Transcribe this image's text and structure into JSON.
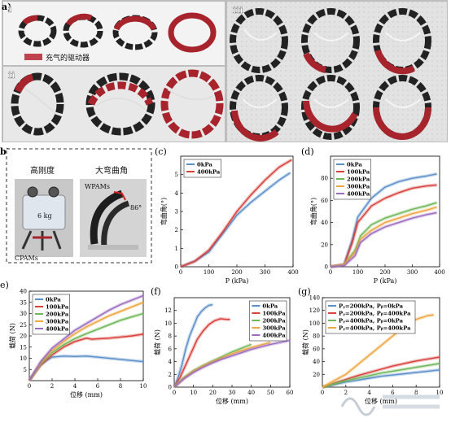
{
  "figure": {
    "panel_a": {
      "label": "a)",
      "sub_i": "i",
      "sub_ii": "ii",
      "sub_iii": "iii",
      "legend_text": "充气的驱动器",
      "legend_color": "#c0424f"
    },
    "panel_b": {
      "label": "b)",
      "left_title": "高刚度",
      "right_title": "大弯曲角",
      "weight_label": "6 kg",
      "cpam_label": "CPAMs",
      "wpam_label": "WPAMs",
      "angle_label": "86°"
    },
    "panel_labels": {
      "c": "(c)",
      "d": "(d)",
      "e": "e)",
      "f": "(f)",
      "g": "(g)"
    }
  },
  "chart_data": [
    {
      "id": "c",
      "type": "line",
      "xlabel": "P (kPa)",
      "ylabel": "弯曲角(°)",
      "xlim": [
        0,
        400
      ],
      "ylim": [
        0,
        6
      ],
      "xticks": [
        "0",
        "100",
        "200",
        "300",
        "400"
      ],
      "yticks": [
        "0",
        "1",
        "2",
        "3",
        "4",
        "5"
      ],
      "legend_position": "top-left",
      "series": [
        {
          "name": "0kPa",
          "color": "#5b8fc9",
          "x": [
            0,
            50,
            100,
            150,
            200,
            250,
            300,
            350,
            390
          ],
          "y": [
            0,
            0.3,
            0.8,
            1.8,
            2.8,
            3.5,
            4.1,
            4.7,
            5.1
          ]
        },
        {
          "name": "400kPa",
          "color": "#d8403a",
          "x": [
            0,
            50,
            100,
            150,
            200,
            250,
            300,
            350,
            395
          ],
          "y": [
            0,
            0.3,
            0.9,
            1.9,
            3.0,
            3.9,
            4.7,
            5.4,
            5.8
          ]
        }
      ]
    },
    {
      "id": "d",
      "type": "line",
      "xlabel": "P (kPa)",
      "ylabel": "弯曲角(°)",
      "xlim": [
        0,
        400
      ],
      "ylim": [
        0,
        100
      ],
      "xticks": [
        "0",
        "100",
        "200",
        "300",
        "400"
      ],
      "yticks": [
        "0",
        "20",
        "40",
        "60",
        "80"
      ],
      "legend_position": "top-left",
      "series": [
        {
          "name": "0kPa",
          "color": "#5b8fc9",
          "x": [
            0,
            50,
            80,
            100,
            150,
            200,
            250,
            300,
            350,
            390
          ],
          "y": [
            0,
            2,
            25,
            45,
            62,
            72,
            77,
            80,
            82,
            84
          ]
        },
        {
          "name": "100kPa",
          "color": "#d8403a",
          "x": [
            0,
            50,
            80,
            100,
            150,
            200,
            250,
            300,
            350,
            390
          ],
          "y": [
            0,
            2,
            22,
            40,
            55,
            62,
            67,
            71,
            73,
            74
          ]
        },
        {
          "name": "200kPa",
          "color": "#6fb85a",
          "x": [
            0,
            50,
            90,
            110,
            150,
            200,
            250,
            300,
            350,
            390
          ],
          "y": [
            0,
            2,
            15,
            28,
            38,
            44,
            48,
            52,
            55,
            58
          ]
        },
        {
          "name": "300kPa",
          "color": "#f0a640",
          "x": [
            0,
            50,
            90,
            110,
            150,
            200,
            250,
            300,
            350,
            390
          ],
          "y": [
            0,
            2,
            13,
            25,
            33,
            40,
            44,
            48,
            51,
            54
          ]
        },
        {
          "name": "400kPa",
          "color": "#9a6cc0",
          "x": [
            0,
            50,
            90,
            110,
            150,
            200,
            250,
            300,
            350,
            390
          ],
          "y": [
            0,
            1,
            10,
            22,
            30,
            36,
            40,
            44,
            47,
            49
          ]
        }
      ]
    },
    {
      "id": "e",
      "type": "line",
      "xlabel": "位移 (mm)",
      "ylabel": "载荷 (N)",
      "xlim": [
        0,
        10
      ],
      "ylim": [
        0,
        40
      ],
      "xticks": [
        "0",
        "2",
        "4",
        "6",
        "8",
        "10"
      ],
      "yticks": [
        "5",
        "10",
        "15",
        "20",
        "25",
        "30",
        "35",
        "40"
      ],
      "legend_position": "top-left",
      "series": [
        {
          "name": "0kPa",
          "color": "#5b8fc9",
          "x": [
            0,
            0.5,
            1,
            1.5,
            2,
            3,
            4,
            5,
            6,
            8,
            10
          ],
          "y": [
            0,
            4,
            7,
            9,
            10.5,
            11,
            10.8,
            11,
            10.5,
            9.5,
            8.5
          ]
        },
        {
          "name": "100kPa",
          "color": "#d8403a",
          "x": [
            0,
            1,
            2,
            3,
            4,
            5,
            5.5,
            6,
            7,
            8,
            9,
            10
          ],
          "y": [
            0,
            7,
            11.5,
            15,
            17.5,
            19,
            18.5,
            18.7,
            19,
            19.5,
            20,
            20.8
          ]
        },
        {
          "name": "200kPa",
          "color": "#6fb85a",
          "x": [
            0,
            1,
            2,
            3,
            4,
            5,
            6,
            7,
            8,
            9,
            10
          ],
          "y": [
            0,
            7.5,
            12.5,
            16,
            18.8,
            21,
            23,
            25,
            27,
            28.5,
            30
          ]
        },
        {
          "name": "300kPa",
          "color": "#f0a640",
          "x": [
            0,
            1,
            2,
            3,
            4,
            5,
            6,
            7,
            8,
            9,
            10
          ],
          "y": [
            0,
            8,
            13.5,
            17.5,
            21,
            24,
            26.5,
            29,
            31,
            33,
            35
          ]
        },
        {
          "name": "400kPa",
          "color": "#9a6cc0",
          "x": [
            0,
            1,
            2,
            3,
            4,
            5,
            6,
            7,
            8,
            9,
            10
          ],
          "y": [
            0,
            8.5,
            14.5,
            18.5,
            22.5,
            25.5,
            28.5,
            31.5,
            34,
            36,
            38
          ]
        }
      ]
    },
    {
      "id": "f",
      "type": "line",
      "xlabel": "位移 (mm)",
      "ylabel": "载荷 (N)",
      "xlim": [
        0,
        60
      ],
      "ylim": [
        0,
        14
      ],
      "xticks": [
        "0",
        "10",
        "20",
        "30",
        "40",
        "50",
        "60"
      ],
      "yticks": [
        "0",
        "2",
        "4",
        "6",
        "8",
        "10",
        "12"
      ],
      "legend_position": "top-right",
      "series": [
        {
          "name": "0kPa",
          "color": "#5b8fc9",
          "x": [
            0,
            2,
            4,
            6,
            8,
            10,
            12,
            14,
            16,
            18,
            20
          ],
          "y": [
            0,
            1.5,
            3.5,
            6,
            8,
            9.5,
            11,
            11.8,
            12.4,
            12.8,
            12.9
          ]
        },
        {
          "name": "100kPa",
          "color": "#d8403a",
          "x": [
            0,
            3,
            6,
            9,
            12,
            15,
            18,
            21,
            24,
            27,
            29
          ],
          "y": [
            0,
            1.5,
            3.5,
            5.5,
            7.5,
            8.8,
            9.8,
            10.4,
            10.7,
            10.6,
            10.6
          ]
        },
        {
          "name": "200kPa",
          "color": "#6fb85a",
          "x": [
            0,
            5,
            10,
            15,
            20,
            25,
            30,
            35,
            40
          ],
          "y": [
            0,
            1.5,
            2.6,
            3.4,
            4.1,
            4.8,
            5.5,
            6.1,
            6.7
          ]
        },
        {
          "name": "300kPa",
          "color": "#f0a640",
          "x": [
            0,
            5,
            10,
            15,
            20,
            25,
            30,
            35,
            40,
            45,
            50
          ],
          "y": [
            0,
            1.4,
            2.5,
            3.3,
            4.0,
            4.6,
            5.2,
            5.7,
            6.2,
            6.6,
            7.0
          ]
        },
        {
          "name": "400kPa",
          "color": "#9a6cc0",
          "x": [
            0,
            5,
            10,
            15,
            20,
            25,
            30,
            35,
            40,
            45,
            50,
            55,
            60
          ],
          "y": [
            0,
            1.3,
            2.3,
            3.1,
            3.8,
            4.4,
            4.9,
            5.4,
            5.9,
            6.3,
            6.7,
            7.0,
            7.3
          ]
        }
      ]
    },
    {
      "id": "g",
      "type": "line",
      "xlabel": "位移 (mm)",
      "ylabel": "载荷 (N)",
      "xlim": [
        0,
        10
      ],
      "ylim": [
        0,
        140
      ],
      "xticks": [
        "0",
        "2",
        "4",
        "6",
        "8",
        "10"
      ],
      "yticks": [
        "20",
        "40",
        "60",
        "80",
        "100",
        "120",
        "140"
      ],
      "legend_position": "top-left",
      "series": [
        {
          "name": "Pᵧ=200kPa, Pᵦ=0kPa",
          "color": "#5b8fc9",
          "x": [
            0,
            1,
            2,
            3,
            4,
            5,
            6,
            7,
            8,
            9,
            10
          ],
          "y": [
            0,
            4,
            8,
            11,
            14,
            17,
            19,
            21,
            23,
            25,
            27
          ]
        },
        {
          "name": "Pᵧ=200kPa, Pᵦ=400kPa",
          "color": "#d8403a",
          "x": [
            0,
            1,
            2,
            3,
            4,
            5,
            6,
            7,
            8,
            9,
            10
          ],
          "y": [
            0,
            6,
            12,
            18,
            23,
            28,
            33,
            37,
            41,
            44,
            47
          ]
        },
        {
          "name": "Pᵧ=400kPa, Pᵦ=0kPa",
          "color": "#6fb85a",
          "x": [
            0,
            1,
            2,
            3,
            4,
            5,
            6,
            7,
            8,
            9,
            10
          ],
          "y": [
            0,
            5,
            10,
            14,
            18,
            22,
            25,
            28,
            31,
            34,
            37
          ]
        },
        {
          "name": "Pᵧ=400kPa, Pᵦ=400kPa",
          "color": "#f0a640",
          "x": [
            0,
            1,
            2,
            3,
            4,
            5,
            6,
            7,
            8,
            9,
            9.5
          ],
          "y": [
            0,
            10,
            20,
            35,
            50,
            65,
            80,
            95,
            106,
            112,
            113
          ]
        }
      ]
    }
  ]
}
